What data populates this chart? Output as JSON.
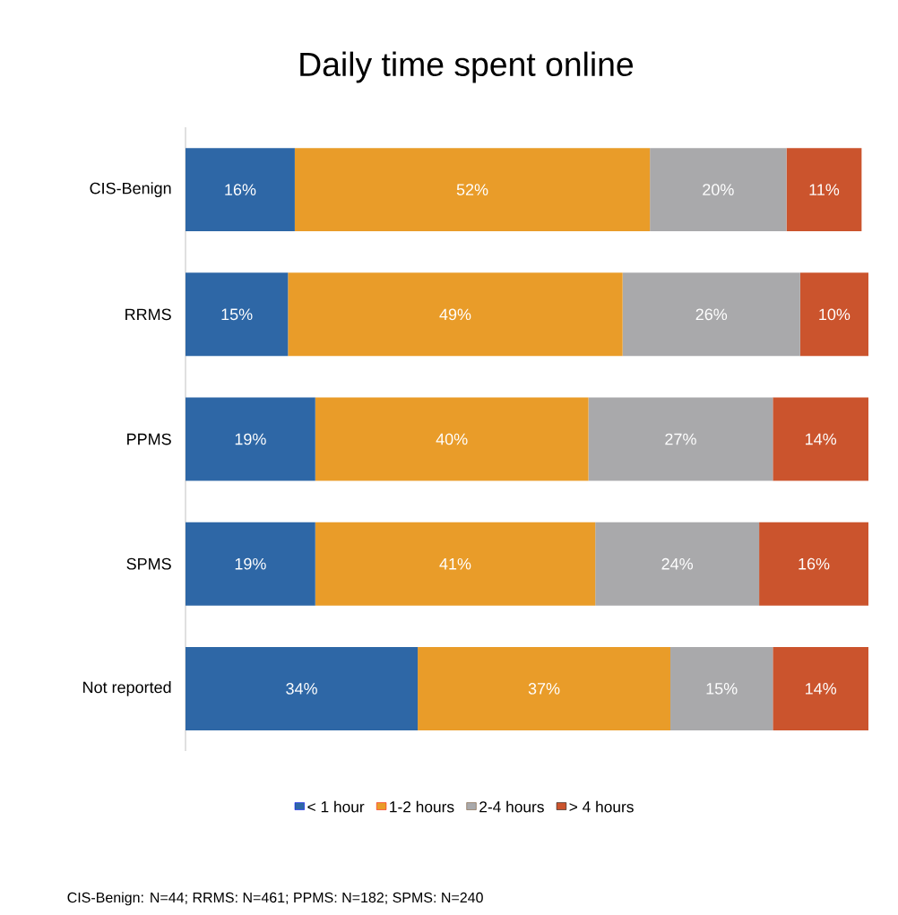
{
  "chart_data": {
    "type": "bar",
    "orientation": "horizontal",
    "stacked": true,
    "title": "Daily time spent online",
    "categories": [
      "CIS-Benign",
      "RRMS",
      "PPMS",
      "SPMS",
      "Not reported"
    ],
    "series": [
      {
        "name": "< 1 hour",
        "color": "#2e67a6",
        "values": [
          16,
          15,
          19,
          19,
          34
        ],
        "value_labels": [
          "16%",
          "15%",
          "19%",
          "19%",
          "34%"
        ]
      },
      {
        "name": "1-2 hours",
        "color": "#e99c29",
        "values": [
          52,
          49,
          40,
          41,
          37
        ],
        "value_labels": [
          "52%",
          "49%",
          "40%",
          "41%",
          "37%"
        ]
      },
      {
        "name": "2-4 hours",
        "color": "#a9a9ab",
        "values": [
          20,
          26,
          27,
          24,
          15
        ],
        "value_labels": [
          "20%",
          "26%",
          "27%",
          "24%",
          "15%"
        ]
      },
      {
        "name": "> 4 hours",
        "color": "#cb542d",
        "values": [
          11,
          10,
          14,
          16,
          14
        ],
        "value_labels": [
          "11%",
          "10%",
          "14%",
          "16%",
          "14%"
        ]
      }
    ],
    "legend": "bottom",
    "annotations": [
      "CIS-Benign: N=44; RRMS: N=461; PPMS: N=182; SPMS: N=240"
    ]
  }
}
